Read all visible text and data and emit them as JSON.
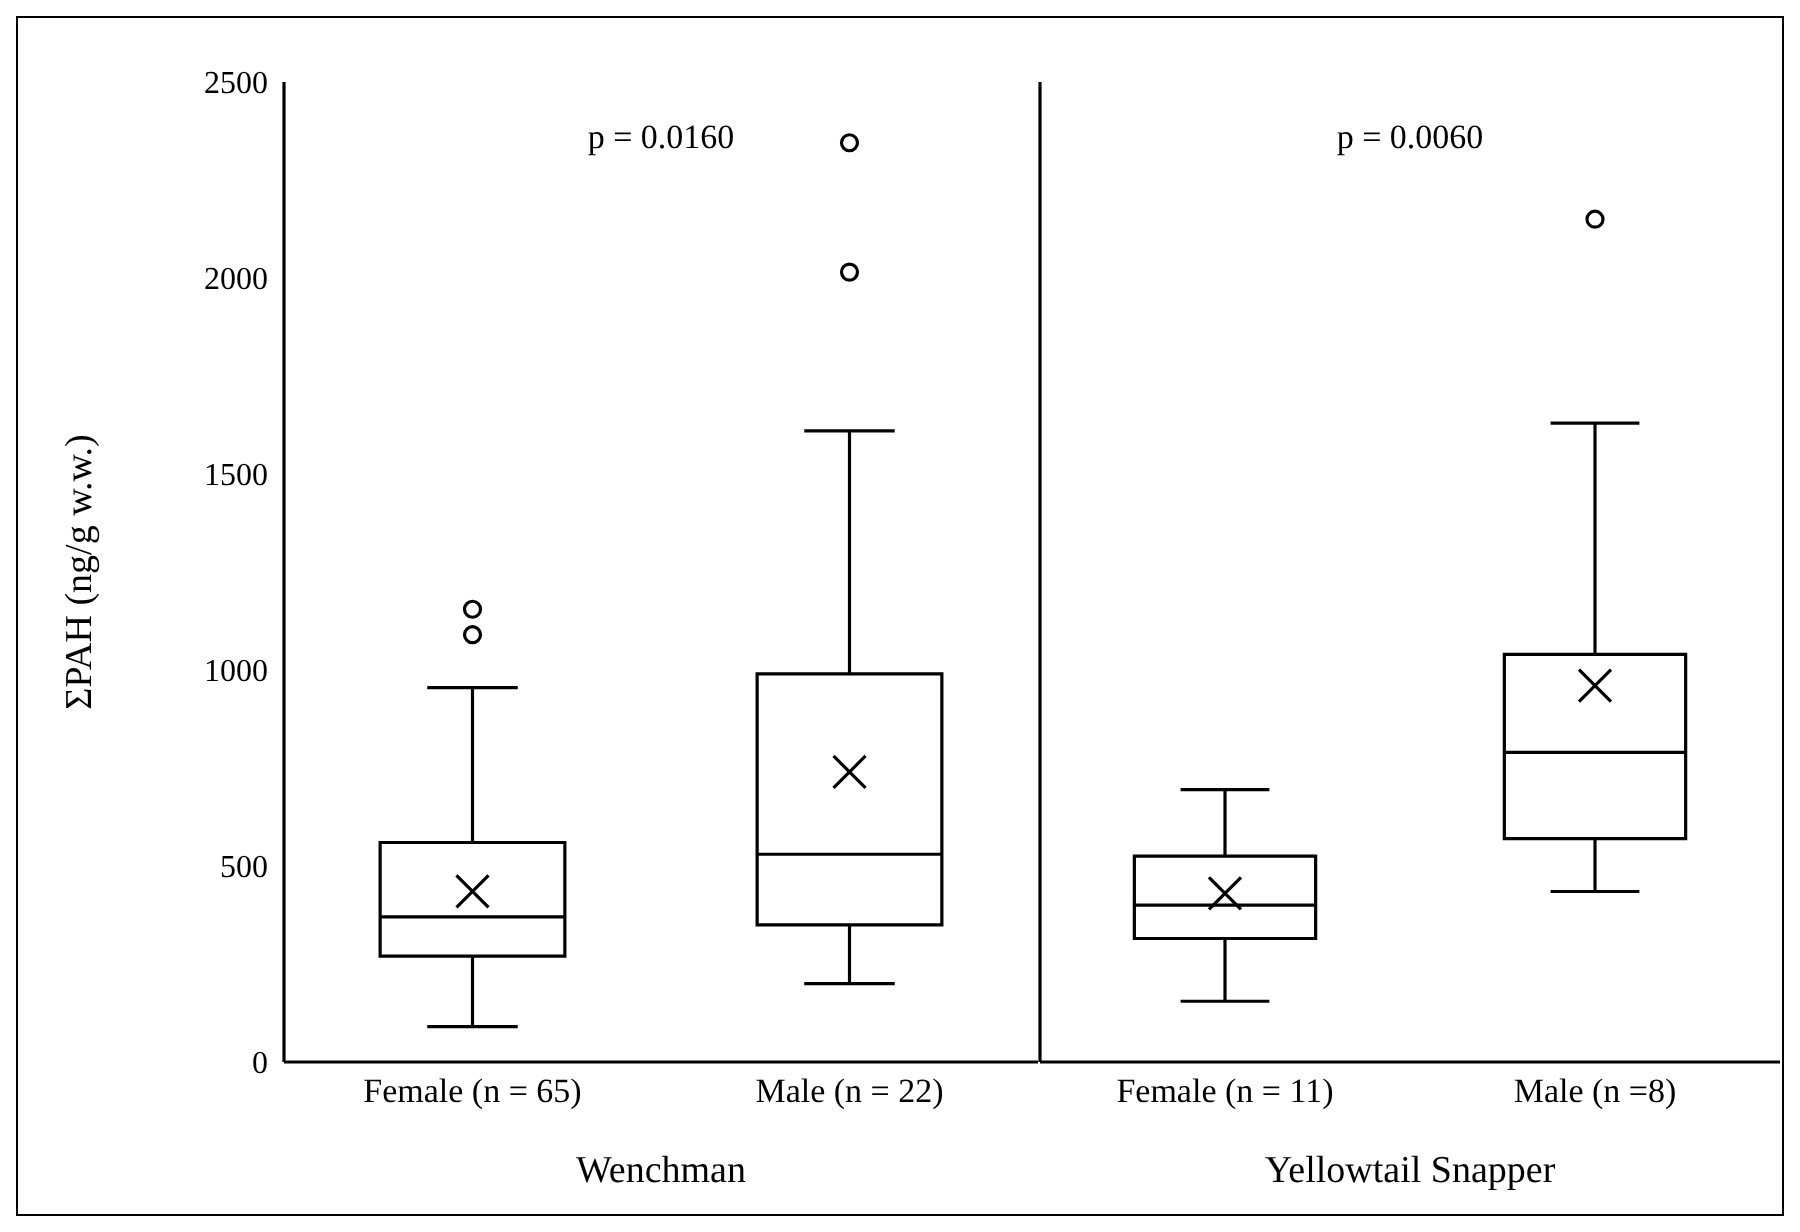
{
  "chart_data": [
    {
      "type": "box",
      "ylabel": "ΣPAH (ng/g w.w.)",
      "xlabel": "Wenchman",
      "categories": [
        "Female (n = 65)",
        "Male (n = 22)"
      ],
      "color": "#000000",
      "boxes": [
        {
          "low": 90,
          "q1": 270,
          "median": 370,
          "q3": 560,
          "high": 955,
          "mean": 435,
          "outliers": [
            1090,
            1155
          ]
        },
        {
          "low": 200,
          "q1": 350,
          "median": 530,
          "q3": 990,
          "high": 1610,
          "mean": 740,
          "outliers": [
            2015,
            2345
          ]
        }
      ],
      "ylim": [
        0,
        2500
      ],
      "yticks": [
        0,
        500,
        1000,
        1500,
        2000,
        2500
      ],
      "annotations": [
        "p = 0.0160"
      ]
    },
    {
      "type": "box",
      "xlabel": "Yellowtail Snapper",
      "categories": [
        "Female (n = 11)",
        "Male (n =8)"
      ],
      "color": "#000000",
      "boxes": [
        {
          "low": 155,
          "q1": 315,
          "median": 400,
          "q3": 525,
          "high": 695,
          "mean": 430
        },
        {
          "low": 435,
          "q1": 570,
          "median": 790,
          "q3": 1040,
          "high": 1630,
          "mean": 960,
          "outliers": [
            2150
          ]
        }
      ],
      "ylim": [
        0,
        2500
      ],
      "yticks": [
        0,
        500,
        1000,
        1500,
        2000,
        2500
      ],
      "tick_labels": "x",
      "annotations": [
        "p = 0.0060"
      ]
    }
  ]
}
